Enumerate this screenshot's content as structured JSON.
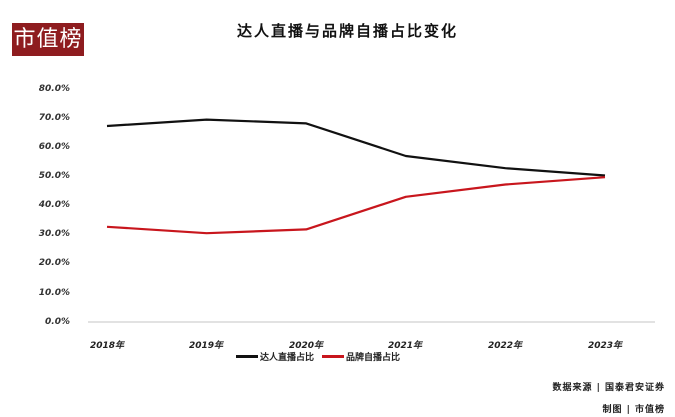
{
  "logo": {
    "text": "市值榜",
    "color": "#8e1c1f"
  },
  "title": "达人直播与品牌自播占比变化",
  "y_ticks": [
    "80.0%",
    "70.0%",
    "60.0%",
    "50.0%",
    "40.0%",
    "30.0%",
    "20.0%",
    "10.0%",
    "0.0%"
  ],
  "x_ticks": [
    "2018年",
    "2019年",
    "2020年",
    "2021年",
    "2022年",
    "2023年"
  ],
  "legend": [
    {
      "label": "达人直播占比",
      "color": "#111111"
    },
    {
      "label": "品牌自播占比",
      "color": "#c8161d"
    }
  ],
  "footer": {
    "source": "数据来源 | 国泰君安证券",
    "made_by": "制图 | 市值榜"
  },
  "chart_data": {
    "type": "line",
    "title": "达人直播与品牌自播占比变化",
    "categories": [
      "2018年",
      "2019年",
      "2020年",
      "2021年",
      "2022年",
      "2023年"
    ],
    "series": [
      {
        "name": "达人直播占比",
        "color": "#111111",
        "values": [
          67.3,
          69.5,
          68.2,
          57.0,
          52.8,
          50.3
        ]
      },
      {
        "name": "品牌自播占比",
        "color": "#c8161d",
        "values": [
          32.7,
          30.5,
          31.8,
          43.0,
          47.2,
          49.7
        ]
      }
    ],
    "xlabel": "",
    "ylabel": "",
    "ylim": [
      0,
      80
    ],
    "y_tick_format": "percent_1dp",
    "grid": false,
    "legend_position": "bottom"
  }
}
